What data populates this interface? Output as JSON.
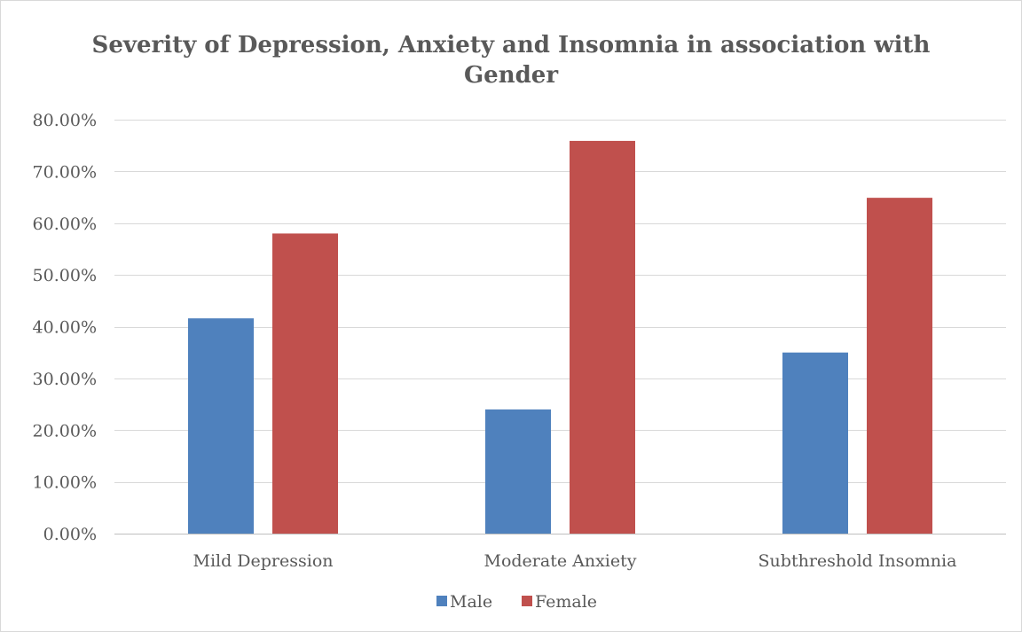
{
  "chart_data": {
    "type": "bar",
    "title_lines": [
      "Severity of Depression, Anxiety and Insomnia in association with",
      "Gender"
    ],
    "categories": [
      "Mild Depression",
      "Moderate Anxiety",
      "Subthreshold Insomnia"
    ],
    "series": [
      {
        "name": "Male",
        "values": [
          41.6,
          24.0,
          35.0
        ],
        "color": "#4f81bd"
      },
      {
        "name": "Female",
        "values": [
          58.0,
          75.9,
          64.9
        ],
        "color": "#c0504d"
      }
    ],
    "ylim": [
      0,
      80
    ],
    "yticks": [
      0,
      10,
      20,
      30,
      40,
      50,
      60,
      70,
      80
    ],
    "ytick_labels": [
      "0.00%",
      "10.00%",
      "20.00%",
      "30.00%",
      "40.00%",
      "50.00%",
      "60.00%",
      "70.00%",
      "80.00%"
    ],
    "grid": true,
    "legend_position": "bottom",
    "xlabel": "",
    "ylabel": ""
  }
}
